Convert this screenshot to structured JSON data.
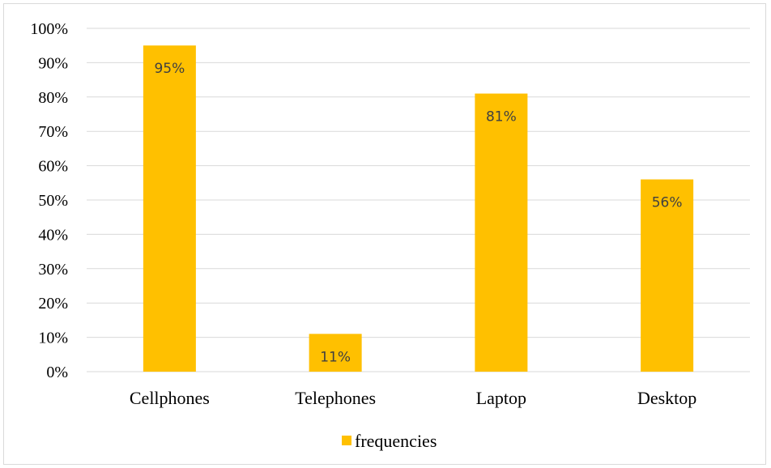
{
  "chart_data": {
    "type": "bar",
    "categories": [
      "Cellphones",
      "Telephones",
      "Laptop",
      "Desktop"
    ],
    "series": [
      {
        "name": "frequencies",
        "values": [
          95,
          11,
          81,
          56
        ],
        "color": "#FFC000"
      }
    ],
    "data_labels": [
      "95%",
      "11%",
      "81%",
      "56%"
    ],
    "y_ticks": [
      "0%",
      "10%",
      "20%",
      "30%",
      "40%",
      "50%",
      "60%",
      "70%",
      "80%",
      "90%",
      "100%"
    ],
    "ylim": [
      0,
      100
    ],
    "grid": true,
    "legend_position": "bottom"
  }
}
